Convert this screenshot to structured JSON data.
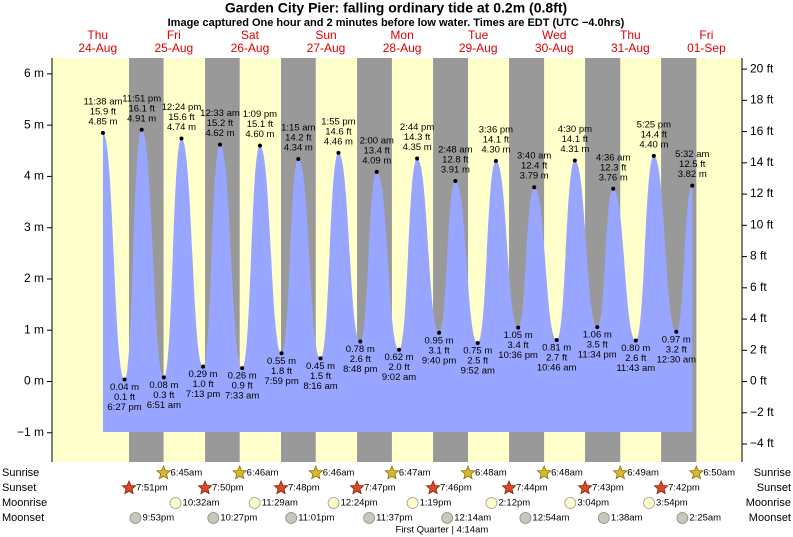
{
  "chart_data": {
    "type": "tide",
    "title": "Garden City Pier: falling  ordinary tide at 0.2m (0.8ft)",
    "subtitle": "Image captured One hour and 2 minutes before low water. Times are EDT (UTC −4.0hrs)",
    "ylim": [
      -1.57,
      6.31
    ],
    "yticks": [
      {
        "value": 6,
        "label": "6 m"
      },
      {
        "value": 5,
        "label": "5 m"
      },
      {
        "value": 4,
        "label": "4 m"
      },
      {
        "value": 3,
        "label": "3 m"
      },
      {
        "value": 2,
        "label": "2 m"
      },
      {
        "value": 1,
        "label": "1 m"
      },
      {
        "value": 0,
        "label": "0 m"
      },
      {
        "value": -1,
        "label": "−1 m"
      }
    ],
    "y2lim": [
      -5.15,
      20.71
    ],
    "y2ticks": [
      {
        "value": 20,
        "label": "20 ft"
      },
      {
        "value": 18,
        "label": "18 ft"
      },
      {
        "value": 16,
        "label": "16 ft"
      },
      {
        "value": 14,
        "label": "14 ft"
      },
      {
        "value": 12,
        "label": "12 ft"
      },
      {
        "value": 10,
        "label": "10 ft"
      },
      {
        "value": 8,
        "label": "8 ft"
      },
      {
        "value": 6,
        "label": "6 ft"
      },
      {
        "value": 4,
        "label": "4 ft"
      },
      {
        "value": 2,
        "label": "2 ft"
      },
      {
        "value": 0,
        "label": "0 ft"
      },
      {
        "value": -2,
        "label": "−2 ft"
      },
      {
        "value": -4,
        "label": "−4 ft"
      }
    ],
    "row_labels": {
      "sunrise": "Sunrise",
      "sunset": "Sunset",
      "moonrise": "Moonrise",
      "moonset": "Moonset"
    },
    "days": [
      {
        "weekday": "Thu",
        "date": "24-Aug",
        "sunrise": null,
        "sunset": "7:51pm",
        "moonrise": null,
        "moonset": "9:53pm",
        "tides": [
          {
            "time": "11:38 am",
            "ft": "15.9 ft",
            "m": "4.85 m",
            "height": 4.85
          },
          {
            "time": "6:27 pm",
            "ft": "0.1 ft",
            "m": "0.04 m",
            "height": 0.04
          },
          {
            "time": "11:51 pm",
            "ft": "16.1 ft",
            "m": "4.91 m",
            "height": 4.91
          }
        ]
      },
      {
        "weekday": "Fri",
        "date": "25-Aug",
        "sunrise": "6:45am",
        "sunset": "7:50pm",
        "moonrise": "10:32am",
        "moonset": "10:27pm",
        "tides": [
          {
            "time": "6:51 am",
            "ft": "0.3 ft",
            "m": "0.08 m",
            "height": 0.08
          },
          {
            "time": "12:24 pm",
            "ft": "15.6 ft",
            "m": "4.74 m",
            "height": 4.74
          },
          {
            "time": "7:13 pm",
            "ft": "1.0 ft",
            "m": "0.29 m",
            "height": 0.29
          }
        ]
      },
      {
        "weekday": "Sat",
        "date": "26-Aug",
        "sunrise": "6:46am",
        "sunset": "7:48pm",
        "moonrise": "11:29am",
        "moonset": "11:01pm",
        "tides": [
          {
            "time": "12:33 am",
            "ft": "15.2 ft",
            "m": "4.62 m",
            "height": 4.62
          },
          {
            "time": "7:33 am",
            "ft": "0.9 ft",
            "m": "0.26 m",
            "height": 0.26
          },
          {
            "time": "1:09 pm",
            "ft": "15.1 ft",
            "m": "4.60 m",
            "height": 4.6
          },
          {
            "time": "7:59 pm",
            "ft": "1.8 ft",
            "m": "0.55 m",
            "height": 0.55
          }
        ]
      },
      {
        "weekday": "Sun",
        "date": "27-Aug",
        "sunrise": "6:46am",
        "sunset": "7:47pm",
        "moonrise": "12:24pm",
        "moonset": "11:37pm",
        "tides": [
          {
            "time": "1:15 am",
            "ft": "14.2 ft",
            "m": "4.34 m",
            "height": 4.34
          },
          {
            "time": "8:16 am",
            "ft": "1.5 ft",
            "m": "0.45 m",
            "height": 0.45
          },
          {
            "time": "1:55 pm",
            "ft": "14.6 ft",
            "m": "4.46 m",
            "height": 4.46
          },
          {
            "time": "8:48 pm",
            "ft": "2.6 ft",
            "m": "0.78 m",
            "height": 0.78
          }
        ]
      },
      {
        "weekday": "Mon",
        "date": "28-Aug",
        "sunrise": "6:47am",
        "sunset": "7:46pm",
        "moonrise": "1:19pm",
        "moonset": null,
        "tides": [
          {
            "time": "2:00 am",
            "ft": "13.4 ft",
            "m": "4.09 m",
            "height": 4.09
          },
          {
            "time": "9:02 am",
            "ft": "2.0 ft",
            "m": "0.62 m",
            "height": 0.62
          },
          {
            "time": "2:44 pm",
            "ft": "14.3 ft",
            "m": "4.35 m",
            "height": 4.35
          },
          {
            "time": "9:40 pm",
            "ft": "3.1 ft",
            "m": "0.95 m",
            "height": 0.95
          }
        ]
      },
      {
        "weekday": "Tue",
        "date": "29-Aug",
        "sunrise": "6:48am",
        "sunset": "7:44pm",
        "moonrise": "2:12pm",
        "moonset": "12:14am",
        "moon_phase": "First Quarter | 4:14am",
        "tides": [
          {
            "time": "2:48 am",
            "ft": "12.8 ft",
            "m": "3.91 m",
            "height": 3.91
          },
          {
            "time": "9:52 am",
            "ft": "2.5 ft",
            "m": "0.75 m",
            "height": 0.75
          },
          {
            "time": "3:36 pm",
            "ft": "14.1 ft",
            "m": "4.30 m",
            "height": 4.3
          },
          {
            "time": "10:36 pm",
            "ft": "3.4 ft",
            "m": "1.05 m",
            "height": 1.05
          }
        ]
      },
      {
        "weekday": "Wed",
        "date": "30-Aug",
        "sunrise": "6:48am",
        "sunset": "7:43pm",
        "moonrise": "3:04pm",
        "moonset": "12:54am",
        "tides": [
          {
            "time": "3:40 am",
            "ft": "12.4 ft",
            "m": "3.79 m",
            "height": 3.79
          },
          {
            "time": "10:46 am",
            "ft": "2.7 ft",
            "m": "0.81 m",
            "height": 0.81
          },
          {
            "time": "4:30 pm",
            "ft": "14.1 ft",
            "m": "4.31 m",
            "height": 4.31
          },
          {
            "time": "11:34 pm",
            "ft": "3.5 ft",
            "m": "1.06 m",
            "height": 1.06
          }
        ]
      },
      {
        "weekday": "Thu",
        "date": "31-Aug",
        "sunrise": "6:49am",
        "sunset": "7:42pm",
        "moonrise": "3:54pm",
        "moonset": "1:38am",
        "tides": [
          {
            "time": "4:36 am",
            "ft": "12.3 ft",
            "m": "3.76 m",
            "height": 3.76
          },
          {
            "time": "11:43 am",
            "ft": "2.6 ft",
            "m": "0.80 m",
            "height": 0.8
          },
          {
            "time": "5:25 pm",
            "ft": "14.4 ft",
            "m": "4.40 m",
            "height": 4.4
          }
        ]
      },
      {
        "weekday": "Fri",
        "date": "01-Sep",
        "sunrise": "6:50am",
        "sunset": null,
        "moonrise": null,
        "moonset": "2:25am",
        "tides": [
          {
            "time": "12:30 am",
            "ft": "3.2 ft",
            "m": "0.97 m",
            "height": 0.97
          },
          {
            "time": "5:32 am",
            "ft": "12.5 ft",
            "m": "3.82 m",
            "height": 3.82
          }
        ]
      }
    ]
  }
}
